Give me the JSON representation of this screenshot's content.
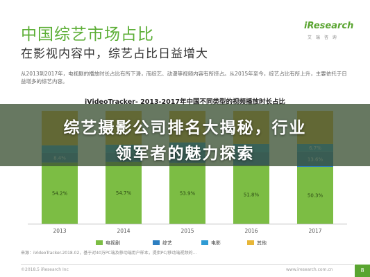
{
  "slide": {
    "title": "中国综艺市场占比",
    "subtitle": "在影视内容中，综艺占比日益增大",
    "brand": "iResearch",
    "brand_sub": "艾 瑞 咨 询",
    "description": "从2013到2017年，电视剧的播放时长占比有所下滑，而综艺、动漫等视频内容有所挤占。从2015年至今，综艺占比有所上升，主要依托于日益增多的综艺内容。",
    "source": "来源：iVideoTracker.2018.02，基于对40万PC端及移动端用户样本，提供PC/移动端视频的...",
    "copyright": "©2018.5 iResearch Inc",
    "website": "www.iresearch.com.cn",
    "page_number": "8"
  },
  "headline": {
    "line1": "综艺摄影公司排名大揭秘，行业",
    "line2": "领军者的魅力探索"
  },
  "colors": {
    "brand_green": "#5aa531",
    "series_tv": "#7cbd44",
    "series_variety": "#2d7fc1",
    "series_movie": "#2f9bd4",
    "series_other": "#e7b638"
  },
  "chart_data": {
    "type": "bar",
    "stacked": true,
    "percent": true,
    "title": "iVideoTracker- 2013-2017年中国不同类型的视频播放时长占比",
    "categories": [
      "2013",
      "2014",
      "2015",
      "2016",
      "2017"
    ],
    "series": [
      {
        "name": "电视剧",
        "values": [
          54.2,
          54.7,
          53.9,
          51.8,
          50.3
        ],
        "labels": [
          "54.2%",
          "54.7%",
          "53.9%",
          "51.8%",
          "50.3%"
        ]
      },
      {
        "name": "综艺",
        "values": [
          8.4,
          8.3,
          10.6,
          11.4,
          13.6
        ],
        "labels": [
          "8.4%",
          "8.3%",
          "",
          "",
          "13.6%"
        ]
      },
      {
        "name": "电影",
        "values": [
          6.8,
          7.0,
          7.5,
          7.4,
          6.7
        ],
        "labels": [
          "",
          "",
          "",
          "",
          "6.7%"
        ]
      },
      {
        "name": "其他",
        "values": [
          30.6,
          30.0,
          28.0,
          29.4,
          29.4
        ],
        "labels": [
          "",
          "",
          "",
          "",
          ""
        ]
      }
    ],
    "ylim": [
      0,
      100
    ],
    "legend_position": "bottom"
  }
}
